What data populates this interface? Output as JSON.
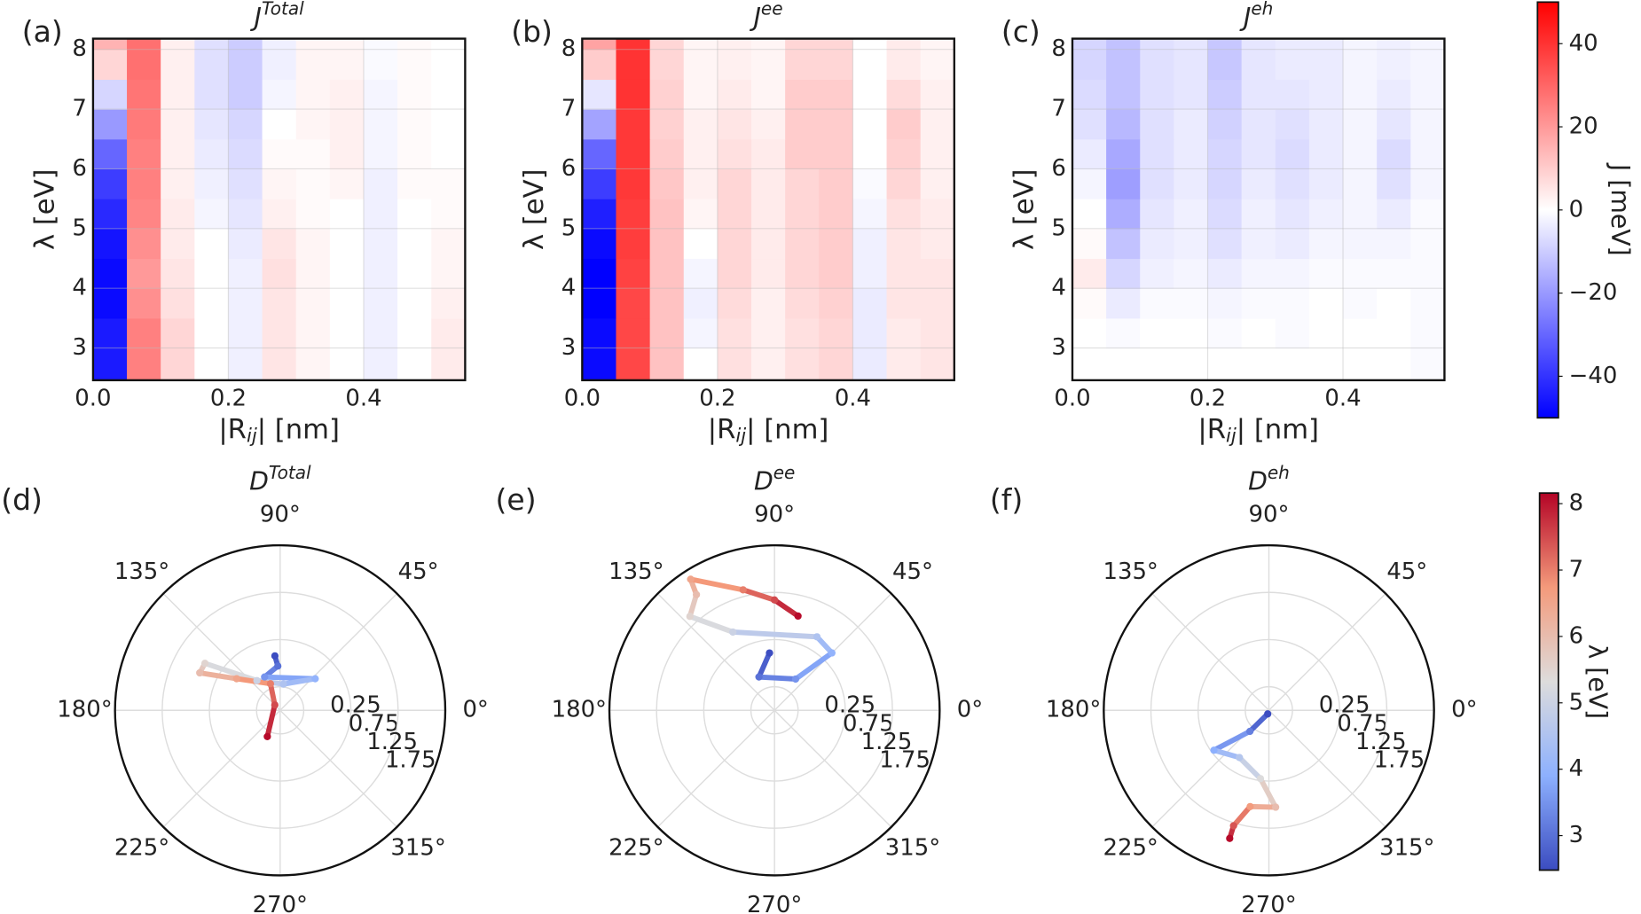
{
  "chart_data": [
    {
      "type": "heatmap",
      "label": "(a)",
      "title": "J",
      "title_sup": "Total",
      "xlabel": [
        "|R",
        "ij",
        "| [nm]"
      ],
      "ylabel": "λ [eV]",
      "x_bins": [
        0,
        0.05,
        0.1,
        0.15,
        0.2,
        0.25,
        0.3,
        0.35,
        0.4,
        0.45,
        0.5,
        0.55
      ],
      "y_bins": [
        2.46,
        3.0,
        3.5,
        4.0,
        4.5,
        5.0,
        5.5,
        6.0,
        6.5,
        7.0,
        7.5,
        8.0,
        8.18
      ],
      "xlim": [
        0,
        0.55
      ],
      "ylim": [
        2.46,
        8.18
      ],
      "xticks": [
        {
          "value": 0,
          "label": "0.0"
        },
        0.2,
        0.4
      ],
      "yticks": [
        3,
        4,
        5,
        6,
        7,
        8
      ],
      "z": [
        [
          -45,
          25,
          8,
          0,
          -3,
          5,
          2,
          0,
          -3,
          0,
          4
        ],
        [
          -45,
          25,
          8,
          0,
          -3,
          5,
          2,
          0,
          -3,
          0,
          4
        ],
        [
          -48,
          22,
          6,
          0,
          -3,
          5,
          2,
          0,
          -3,
          0,
          3
        ],
        [
          -48,
          20,
          5,
          0,
          -3,
          6,
          2,
          0,
          -3,
          0,
          2
        ],
        [
          -46,
          22,
          4,
          0,
          -4,
          5,
          2,
          0,
          -3,
          0,
          2
        ],
        [
          -42,
          24,
          4,
          -2,
          -5,
          3,
          1,
          0,
          -3,
          0,
          1
        ],
        [
          -38,
          25,
          3,
          -3,
          -6,
          2,
          1,
          2,
          -3,
          1,
          1
        ],
        [
          -30,
          25,
          3,
          -4,
          -7,
          1,
          1,
          3,
          -2,
          1,
          0
        ],
        [
          -20,
          26,
          3,
          -5,
          -8,
          0,
          2,
          3,
          -2,
          1,
          0
        ],
        [
          -8,
          27,
          3,
          -6,
          -10,
          -2,
          2,
          3,
          -2,
          1,
          0
        ],
        [
          8,
          28,
          3,
          -6,
          -10,
          -3,
          2,
          2,
          -1,
          1,
          0
        ],
        [
          15,
          28,
          3,
          -6,
          -10,
          -3,
          2,
          2,
          -1,
          1,
          0
        ]
      ]
    },
    {
      "type": "heatmap",
      "label": "(b)",
      "title": "J",
      "title_sup": "ee",
      "xlabel": [
        "|R",
        "ij",
        "| [nm]"
      ],
      "ylabel": "λ [eV]",
      "x_bins": [
        0,
        0.05,
        0.1,
        0.15,
        0.2,
        0.25,
        0.3,
        0.35,
        0.4,
        0.45,
        0.5,
        0.55
      ],
      "y_bins": [
        2.46,
        3.0,
        3.5,
        4.0,
        4.5,
        5.0,
        5.5,
        6.0,
        6.5,
        7.0,
        7.5,
        8.0,
        8.18
      ],
      "xlim": [
        0,
        0.55
      ],
      "ylim": [
        2.46,
        8.18
      ],
      "xticks": [
        {
          "value": 0,
          "label": "0.0"
        },
        0.2,
        0.4
      ],
      "yticks": [
        3,
        4,
        5,
        6,
        7,
        8
      ],
      "z": [
        [
          -48,
          36,
          12,
          0,
          6,
          3,
          6,
          8,
          -4,
          4,
          5
        ],
        [
          -48,
          36,
          12,
          -2,
          6,
          3,
          6,
          8,
          -4,
          4,
          5
        ],
        [
          -50,
          36,
          12,
          -3,
          7,
          3,
          7,
          9,
          -4,
          5,
          5
        ],
        [
          -50,
          37,
          12,
          -2,
          8,
          4,
          8,
          10,
          -3,
          5,
          5
        ],
        [
          -48,
          38,
          12,
          0,
          8,
          4,
          8,
          10,
          -3,
          5,
          4
        ],
        [
          -44,
          38,
          12,
          2,
          8,
          4,
          8,
          10,
          -2,
          6,
          4
        ],
        [
          -38,
          39,
          11,
          3,
          8,
          4,
          8,
          10,
          -1,
          8,
          3
        ],
        [
          -30,
          39,
          10,
          3,
          6,
          4,
          10,
          10,
          0,
          9,
          3
        ],
        [
          -18,
          39,
          9,
          3,
          5,
          3,
          10,
          10,
          0,
          10,
          3
        ],
        [
          -5,
          40,
          9,
          2,
          4,
          2,
          10,
          10,
          0,
          7,
          3
        ],
        [
          10,
          40,
          8,
          2,
          3,
          2,
          8,
          8,
          0,
          4,
          2
        ],
        [
          18,
          40,
          8,
          2,
          3,
          2,
          8,
          8,
          0,
          4,
          2
        ]
      ]
    },
    {
      "type": "heatmap",
      "label": "(c)",
      "title": "J",
      "title_sup": "eh",
      "xlabel": [
        "|R",
        "ij",
        "| [nm]"
      ],
      "ylabel": "λ [eV]",
      "x_bins": [
        0,
        0.05,
        0.1,
        0.15,
        0.2,
        0.25,
        0.3,
        0.35,
        0.4,
        0.45,
        0.5,
        0.55
      ],
      "y_bins": [
        2.46,
        3.0,
        3.5,
        4.0,
        4.5,
        5.0,
        5.5,
        6.0,
        6.5,
        7.0,
        7.5,
        8.0,
        8.18
      ],
      "xlim": [
        0,
        0.55
      ],
      "ylim": [
        2.46,
        8.18
      ],
      "xticks": [
        {
          "value": 0,
          "label": "0.0"
        },
        0.2,
        0.4
      ],
      "yticks": [
        3,
        4,
        5,
        6,
        7,
        8
      ],
      "z": [
        [
          0,
          0,
          0,
          0,
          0,
          0,
          0,
          0,
          0,
          0,
          -1
        ],
        [
          0,
          -1,
          0,
          0,
          -1,
          0,
          -1,
          0,
          0,
          0,
          -1
        ],
        [
          1,
          -4,
          -1,
          -1,
          -2,
          -1,
          -1,
          0,
          -1,
          0,
          -1
        ],
        [
          4,
          -8,
          -3,
          -2,
          -4,
          -2,
          -2,
          -1,
          -1,
          -1,
          -1
        ],
        [
          1,
          -12,
          -4,
          -3,
          -6,
          -3,
          -4,
          -2,
          -2,
          -2,
          -1
        ],
        [
          0,
          -16,
          -5,
          -3,
          -7,
          -3,
          -5,
          -3,
          -2,
          -4,
          -1
        ],
        [
          -2,
          -19,
          -6,
          -4,
          -8,
          -4,
          -6,
          -4,
          -2,
          -6,
          -2
        ],
        [
          -4,
          -17,
          -6,
          -4,
          -8,
          -5,
          -7,
          -4,
          -2,
          -7,
          -2
        ],
        [
          -6,
          -14,
          -6,
          -4,
          -9,
          -5,
          -6,
          -4,
          -2,
          -5,
          -2
        ],
        [
          -7,
          -12,
          -6,
          -5,
          -10,
          -5,
          -5,
          -4,
          -2,
          -4,
          -2
        ],
        [
          -8,
          -12,
          -6,
          -5,
          -11,
          -5,
          -4,
          -4,
          -2,
          -3,
          -2
        ],
        [
          -8,
          -12,
          -6,
          -5,
          -11,
          -5,
          -4,
          -4,
          -2,
          -3,
          -2
        ]
      ]
    },
    {
      "type": "polar",
      "label": "(d)",
      "title": "D",
      "title_sup": "Total",
      "rlim": [
        0,
        1.75
      ],
      "rticks": [
        0.25,
        0.75,
        1.25,
        1.75
      ],
      "thetaticks": [
        {
          "value": 0,
          "label": "0°"
        },
        {
          "value": 45,
          "label": "45°"
        },
        {
          "value": 90,
          "label": "90°"
        },
        {
          "value": 135,
          "label": "135°"
        },
        {
          "value": 180,
          "label": "180°"
        },
        {
          "value": 225,
          "label": "225°"
        },
        {
          "value": 270,
          "label": "270°"
        },
        {
          "value": 315,
          "label": "315°"
        }
      ],
      "r": [
        0.58,
        0.47,
        0.39,
        0.5,
        0.28,
        0.4,
        0.94,
        0.94,
        0.57,
        0.3,
        0.08,
        0.31
      ],
      "theta": [
        95.5,
        93,
        115,
        42,
        83,
        128,
        148,
        155,
        144,
        110,
        135,
        244
      ],
      "lambda": [
        2.5,
        3,
        3.5,
        4,
        4.5,
        5,
        5.5,
        6,
        6.5,
        7,
        7.5,
        8.1
      ]
    },
    {
      "type": "polar",
      "label": "(e)",
      "title": "D",
      "title_sup": "ee",
      "rlim": [
        0,
        1.75
      ],
      "rticks": [
        0.25,
        0.75,
        1.25,
        1.75
      ],
      "thetaticks": [
        {
          "value": 0,
          "label": "0°"
        },
        {
          "value": 45,
          "label": "45°"
        },
        {
          "value": 90,
          "label": "90°"
        },
        {
          "value": 135,
          "label": "135°"
        },
        {
          "value": 180,
          "label": "180°"
        },
        {
          "value": 225,
          "label": "225°"
        },
        {
          "value": 270,
          "label": "270°"
        },
        {
          "value": 315,
          "label": "315°"
        }
      ],
      "r": [
        0.61,
        0.39,
        0.4,
        0.86,
        0.9,
        0.94,
        1.34,
        1.48,
        1.65,
        1.32,
        1.17,
        1.03
      ],
      "theta": [
        95,
        115,
        56,
        45,
        60,
        118,
        132,
        124,
        122.6,
        104.6,
        90,
        76
      ],
      "lambda": [
        2.5,
        3,
        3.5,
        4,
        4.5,
        5,
        5.5,
        6,
        6.5,
        7,
        7.5,
        8.1
      ]
    },
    {
      "type": "polar",
      "label": "(f)",
      "title": "D",
      "title_sup": "eh",
      "rlim": [
        0,
        1.75
      ],
      "rticks": [
        0.25,
        0.75,
        1.25,
        1.75
      ],
      "thetaticks": [
        {
          "value": 0,
          "label": "0°"
        },
        {
          "value": 45,
          "label": "45°"
        },
        {
          "value": 90,
          "label": "90°"
        },
        {
          "value": 135,
          "label": "135°"
        },
        {
          "value": 180,
          "label": "180°"
        },
        {
          "value": 225,
          "label": "225°"
        },
        {
          "value": 270,
          "label": "270°"
        },
        {
          "value": 315,
          "label": "315°"
        }
      ],
      "r": [
        0.04,
        0.3,
        0.72,
        0.59,
        0.73,
        1.03,
        1.04,
        1.28,
        1.42
      ],
      "theta": [
        252,
        228,
        216,
        238,
        263,
        274,
        259,
        253,
        253
      ],
      "lambda": [
        2.5,
        3.2,
        3.9,
        4.6,
        5.3,
        6,
        6.7,
        7.4,
        8.1
      ]
    },
    {
      "type": "colorbar",
      "label": "J [meV]",
      "ylim": [
        -50,
        50
      ],
      "yticks": [
        {
          "value": -40,
          "label": "−40"
        },
        {
          "value": -20,
          "label": "−20"
        },
        0,
        20,
        40
      ],
      "colors": [
        "#0000ff",
        "#ffffff",
        "#ff0000"
      ]
    },
    {
      "type": "colorbar",
      "label": "λ [eV]",
      "ylim": [
        2.48,
        8.16
      ],
      "yticks": [
        3,
        4,
        5,
        6,
        7,
        8
      ],
      "colors": [
        "#3b4cc0",
        "#8db0fe",
        "#dddcdc",
        "#f49a7b",
        "#b40426"
      ]
    }
  ]
}
